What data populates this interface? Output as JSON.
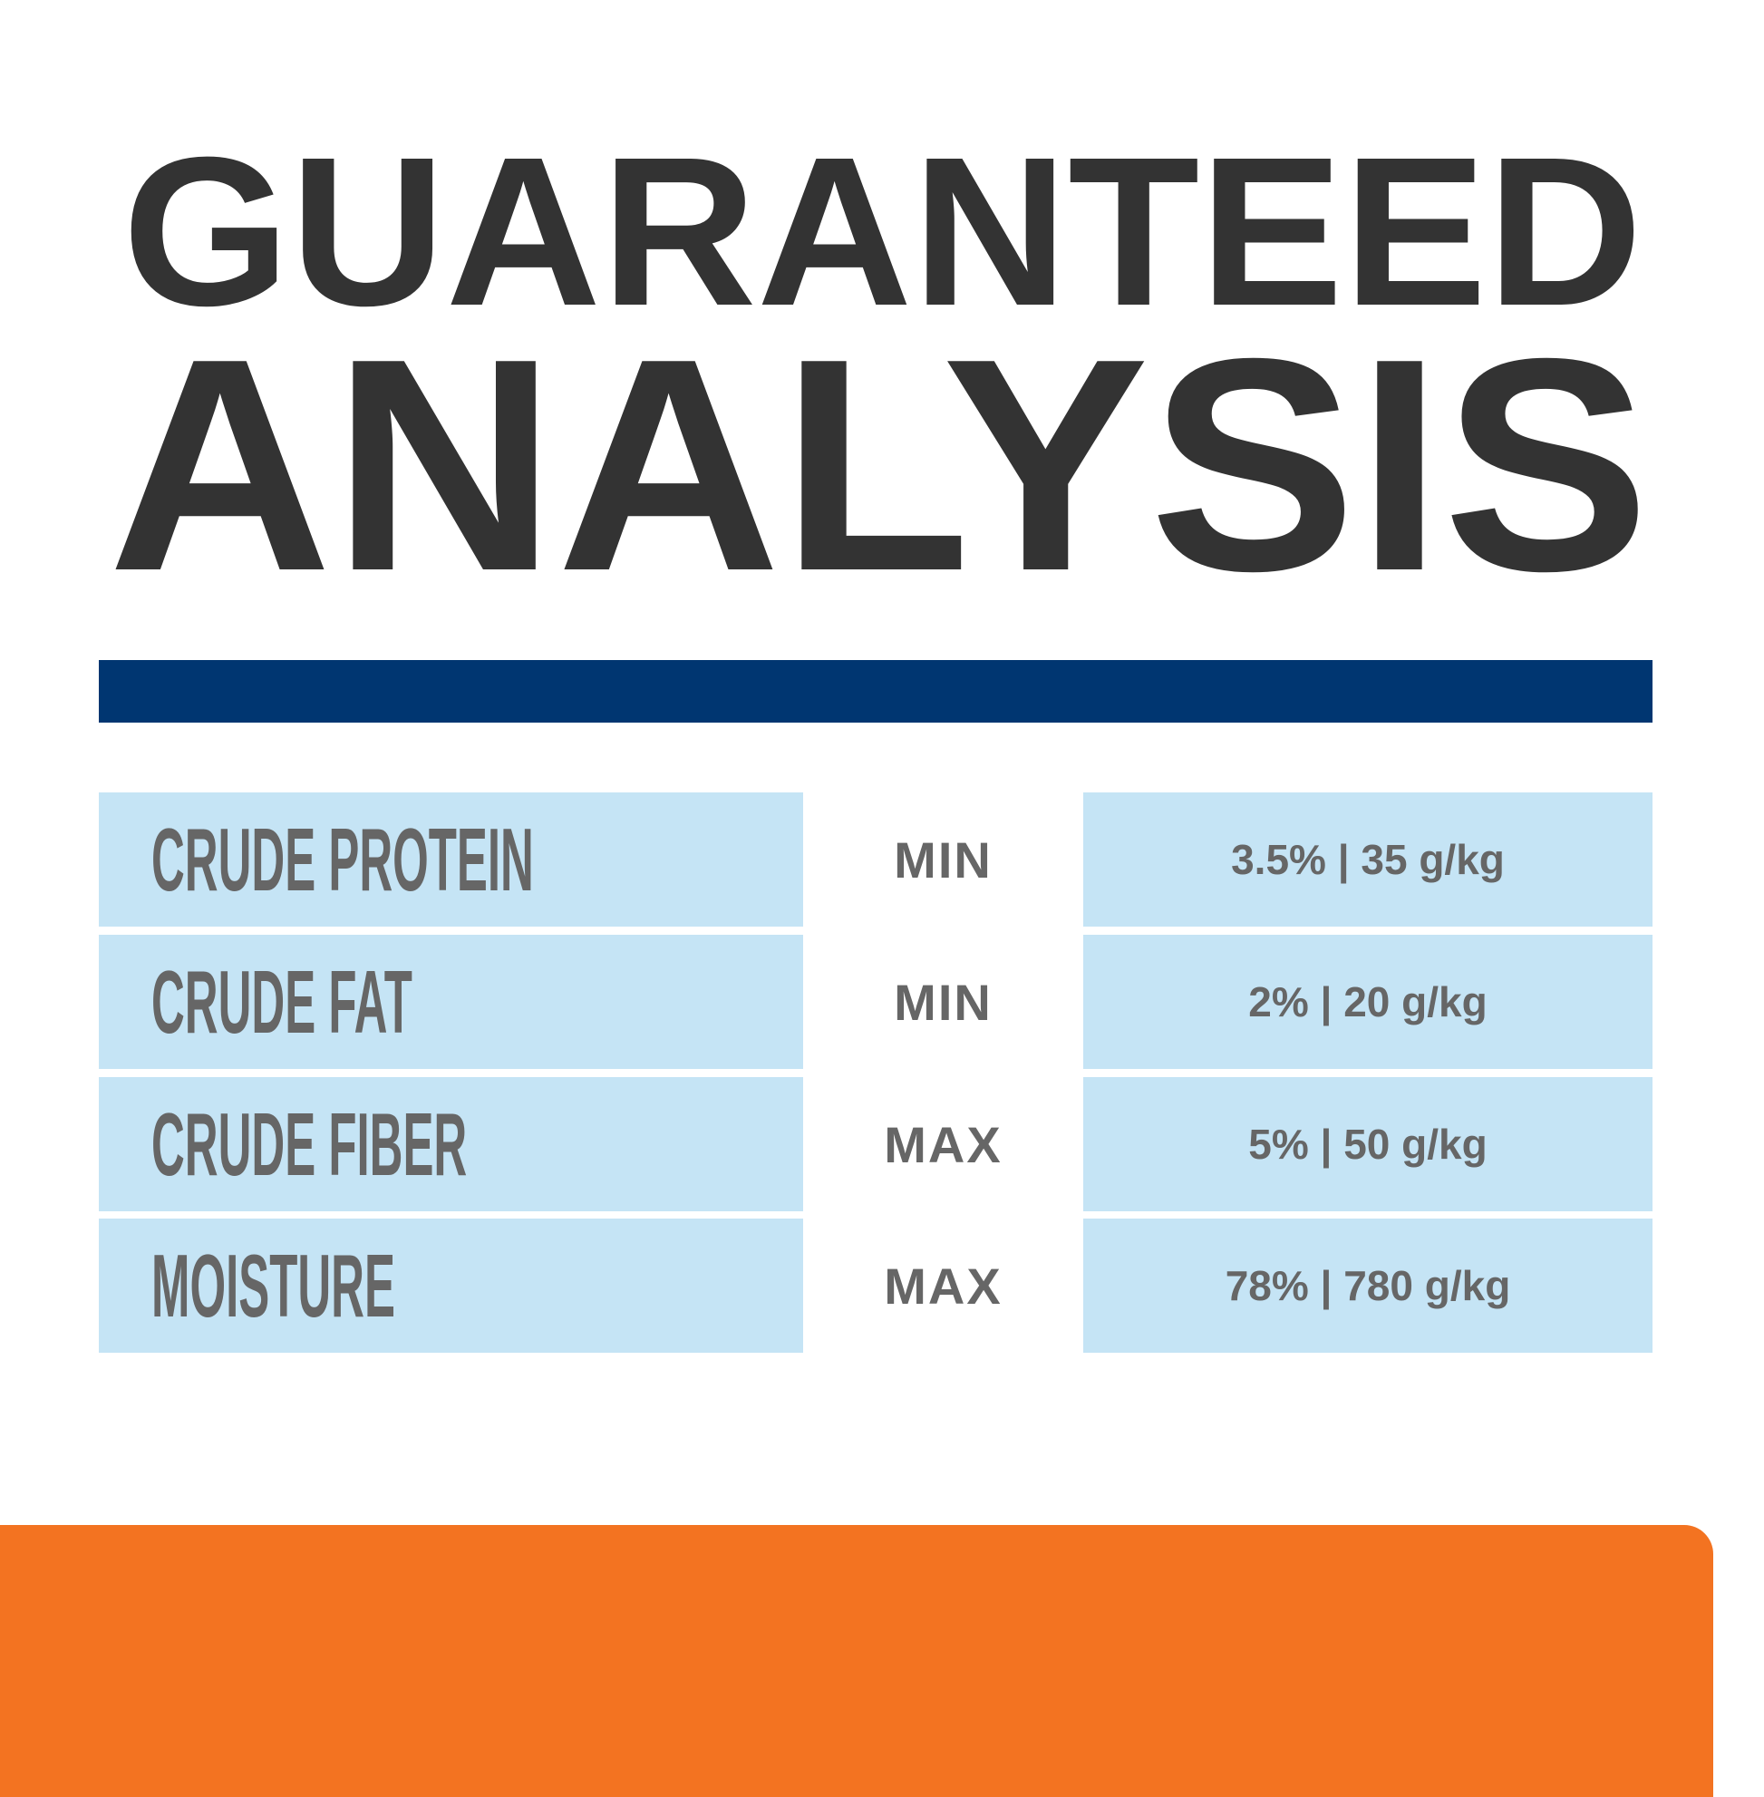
{
  "title": {
    "line1": "GUARANTEED",
    "line2": "ANALYSIS"
  },
  "colors": {
    "title": "#333333",
    "divider": "#003671",
    "cell": "#c5e4f5",
    "text": "#666666",
    "footer": "#f37321"
  },
  "rows": [
    {
      "nutrient": "CRUDE PROTEIN",
      "qualifier": "MIN",
      "value": "3.5% | 35 g/kg"
    },
    {
      "nutrient": "CRUDE FAT",
      "qualifier": "MIN",
      "value": "2% | 20 g/kg"
    },
    {
      "nutrient": "CRUDE FIBER",
      "qualifier": "MAX",
      "value": "5% | 50 g/kg"
    },
    {
      "nutrient": "MOISTURE",
      "qualifier": "MAX",
      "value": "78% | 780 g/kg"
    }
  ]
}
